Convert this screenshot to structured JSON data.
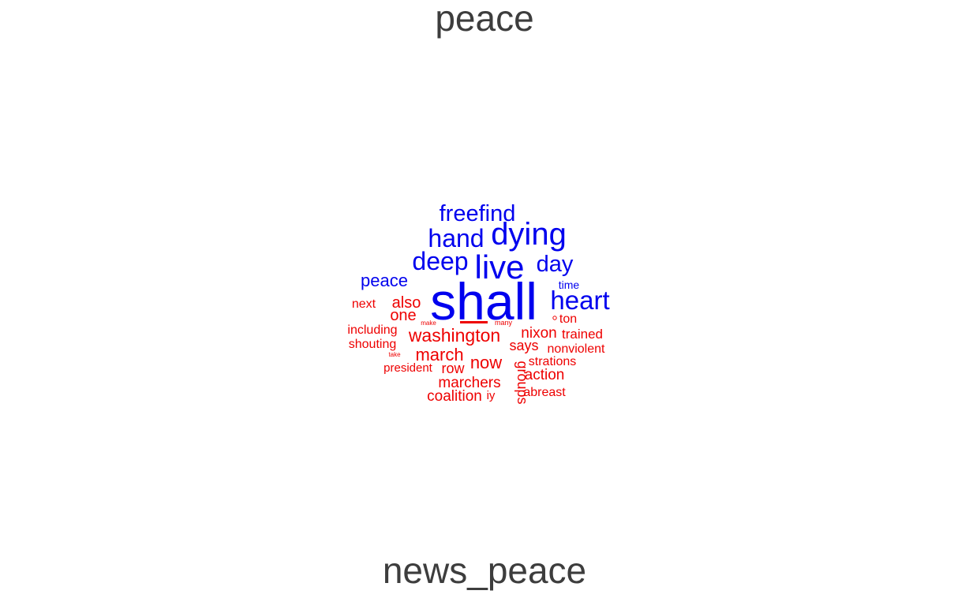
{
  "colors": {
    "label": "#3d3d3d",
    "peace": "#0000ee",
    "news_peace": "#ee0000"
  },
  "labels": {
    "top": "peace",
    "bottom": "news_peace"
  },
  "cloud": {
    "peace_words": [
      {
        "word": "shall",
        "weight": 10.0
      },
      {
        "word": "live",
        "weight": 6.0
      },
      {
        "word": "dying",
        "weight": 5.5
      },
      {
        "word": "heart",
        "weight": 4.6
      },
      {
        "word": "hand",
        "weight": 4.4
      },
      {
        "word": "deep",
        "weight": 4.4
      },
      {
        "word": "freefind",
        "weight": 4.0
      },
      {
        "word": "day",
        "weight": 4.0
      },
      {
        "word": "peace",
        "weight": 3.2
      },
      {
        "word": "time",
        "weight": 2.1
      }
    ],
    "news_peace_words": [
      {
        "word": "washington",
        "weight": 3.3
      },
      {
        "word": "march",
        "weight": 3.1
      },
      {
        "word": "now",
        "weight": 3.1
      },
      {
        "word": "also",
        "weight": 2.8
      },
      {
        "word": "one",
        "weight": 2.8
      },
      {
        "word": "marchers",
        "weight": 2.7
      },
      {
        "word": "nixon",
        "weight": 2.7
      },
      {
        "word": "action",
        "weight": 2.7
      },
      {
        "word": "says",
        "weight": 2.6
      },
      {
        "word": "coalition",
        "weight": 2.6
      },
      {
        "word": "row",
        "weight": 2.6
      },
      {
        "word": "groups",
        "weight": 2.6
      },
      {
        "word": "trained",
        "weight": 2.5
      },
      {
        "word": "next",
        "weight": 2.3
      },
      {
        "word": "including",
        "weight": 2.3
      },
      {
        "word": "shouting",
        "weight": 2.3
      },
      {
        "word": "nonviolent",
        "weight": 2.3
      },
      {
        "word": "strations",
        "weight": 2.3
      },
      {
        "word": "abreast",
        "weight": 2.3
      },
      {
        "word": "ton",
        "weight": 2.3
      },
      {
        "word": "president",
        "weight": 2.2
      },
      {
        "word": "iy",
        "weight": 2.2
      },
      {
        "word": "make",
        "weight": 1.2
      },
      {
        "word": "many",
        "weight": 1.4
      },
      {
        "word": "take",
        "weight": 1.2
      }
    ]
  }
}
